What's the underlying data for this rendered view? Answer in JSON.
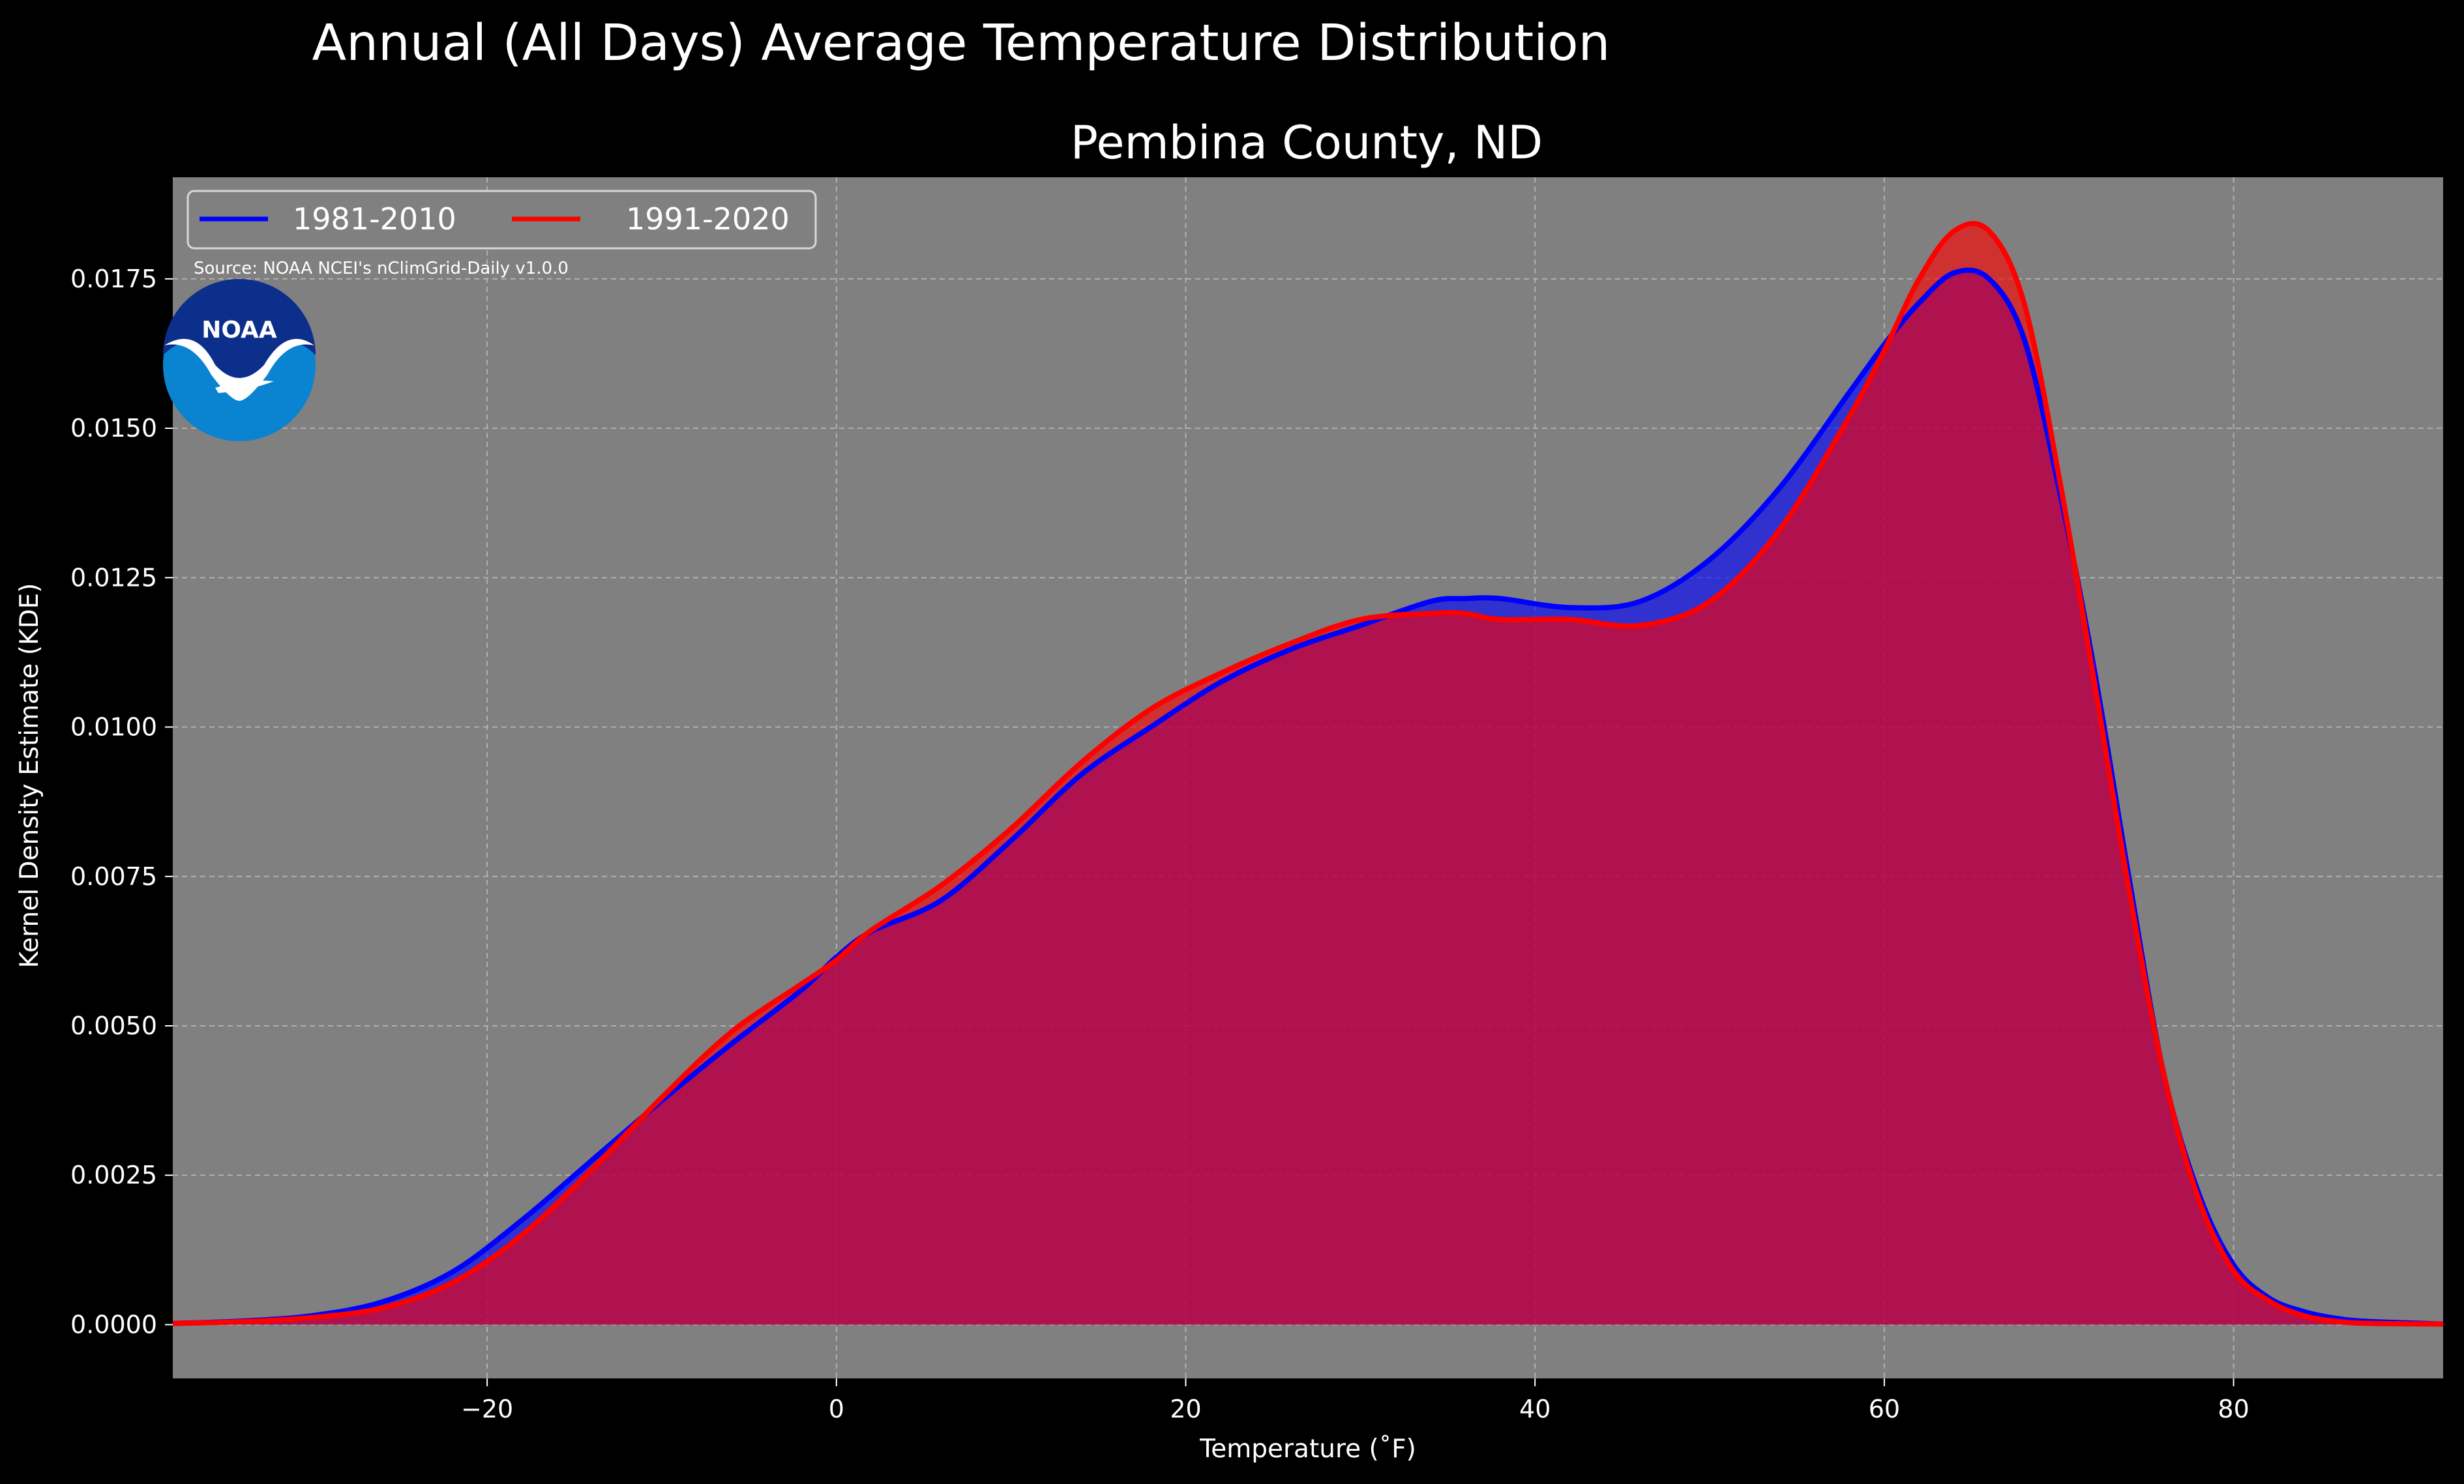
{
  "chart_data": {
    "type": "area",
    "suptitle": "Annual (All Days) Average Temperature Distribution",
    "title": "Pembina County, ND",
    "xlabel": "Temperature (˚F)",
    "ylabel": "Kernel Density Estimate (KDE)",
    "xlim": [
      -38,
      92
    ],
    "ylim": [
      -0.0009,
      0.0192
    ],
    "xticks": [
      -20,
      0,
      20,
      40,
      60,
      80
    ],
    "xtick_labels": [
      "−20",
      "0",
      "20",
      "40",
      "60",
      "80"
    ],
    "yticks": [
      0,
      0.0025,
      0.005,
      0.0075,
      0.01,
      0.0125,
      0.015,
      0.0175
    ],
    "ytick_labels": [
      "0.0000",
      "0.0025",
      "0.0050",
      "0.0075",
      "0.0100",
      "0.0125",
      "0.0150",
      "0.0175"
    ],
    "grid": true,
    "legend_position": "top-left",
    "annotation": "Source: NOAA NCEI's nClimGrid-Daily v1.0.0",
    "series": [
      {
        "name": "1981-2010",
        "color": "#0000ff",
        "x": [
          -38,
          -34,
          -30,
          -26,
          -22,
          -18,
          -14,
          -10,
          -6,
          -2,
          0,
          2,
          6,
          10,
          14,
          18,
          22,
          26,
          30,
          34,
          36,
          38,
          42,
          46,
          50,
          54,
          58,
          60,
          62,
          64,
          66,
          68,
          70,
          72,
          74,
          76,
          78,
          80,
          82,
          84,
          86,
          88,
          92
        ],
        "y": [
          2e-05,
          6e-05,
          0.00015,
          0.00038,
          0.00088,
          0.00175,
          0.00275,
          0.00375,
          0.0047,
          0.0056,
          0.00615,
          0.00658,
          0.0071,
          0.0081,
          0.0092,
          0.01,
          0.01075,
          0.0113,
          0.0117,
          0.0121,
          0.01215,
          0.01215,
          0.012,
          0.0121,
          0.0128,
          0.014,
          0.0156,
          0.0164,
          0.0171,
          0.0176,
          0.0175,
          0.0165,
          0.014,
          0.011,
          0.0075,
          0.0042,
          0.0022,
          0.001,
          0.00045,
          0.00022,
          0.0001,
          5e-05,
          1e-05
        ]
      },
      {
        "name": "1991-2020",
        "color": "#ff0000",
        "x": [
          -38,
          -34,
          -30,
          -26,
          -22,
          -18,
          -14,
          -10,
          -6,
          -2,
          0,
          2,
          6,
          10,
          14,
          18,
          22,
          26,
          30,
          34,
          36,
          38,
          42,
          46,
          50,
          54,
          58,
          60,
          62,
          64,
          66,
          68,
          70,
          72,
          74,
          76,
          78,
          80,
          82,
          84,
          86,
          88,
          92
        ],
        "y": [
          2e-05,
          5e-05,
          0.00012,
          0.00028,
          0.0007,
          0.0015,
          0.0026,
          0.0038,
          0.0049,
          0.0057,
          0.0061,
          0.0066,
          0.00735,
          0.0083,
          0.0094,
          0.0103,
          0.0109,
          0.0114,
          0.0118,
          0.0119,
          0.0119,
          0.0118,
          0.0118,
          0.0117,
          0.0121,
          0.0133,
          0.0152,
          0.0163,
          0.0175,
          0.0183,
          0.0183,
          0.0171,
          0.0142,
          0.0108,
          0.0073,
          0.0042,
          0.0021,
          0.0009,
          0.0004,
          0.00015,
          5e-05,
          2e-05,
          1e-05
        ]
      }
    ]
  }
}
